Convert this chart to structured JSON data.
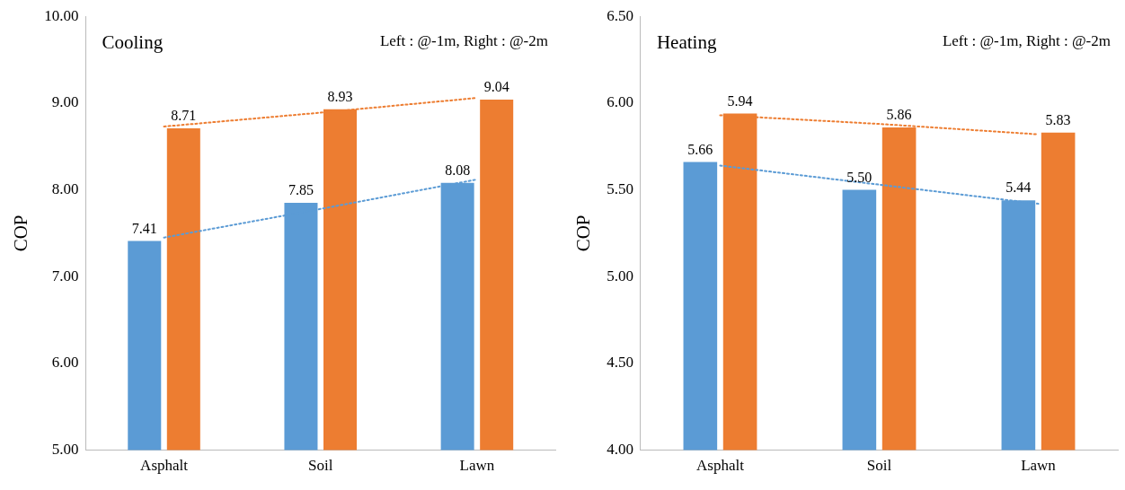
{
  "chart_data": [
    {
      "type": "bar",
      "title": "Cooling",
      "ylabel": "COP",
      "annotations": [
        "Left : @-1m, Right : @-2m"
      ],
      "categories": [
        "Asphalt",
        "Soil",
        "Lawn"
      ],
      "series": [
        {
          "color": "#5b9bd5",
          "values": [
            7.41,
            7.85,
            8.08
          ],
          "value_labels": [
            "7.41",
            "7.85",
            "8.08"
          ]
        },
        {
          "color": "#ed7d31",
          "values": [
            8.71,
            8.93,
            9.04
          ],
          "value_labels": [
            "8.71",
            "8.93",
            "9.04"
          ]
        },
        {
          "type": "line",
          "color": "#5b9bd5",
          "line_style": "dotted",
          "marker": "none",
          "x": [
            "Asphalt",
            "Soil",
            "Lawn"
          ],
          "values": [
            7.45,
            7.78,
            8.12
          ]
        },
        {
          "type": "line",
          "color": "#ed7d31",
          "line_style": "dotted",
          "marker": "none",
          "x": [
            "Asphalt",
            "Soil",
            "Lawn"
          ],
          "values": [
            8.73,
            8.89,
            9.06
          ]
        }
      ],
      "ylim": [
        5,
        10
      ],
      "yticks": [
        {
          "value": 5,
          "label": "5.00"
        },
        {
          "value": 6,
          "label": "6.00"
        },
        {
          "value": 7,
          "label": "7.00"
        },
        {
          "value": 8,
          "label": "8.00"
        },
        {
          "value": 9,
          "label": "9.00"
        },
        {
          "value": 10,
          "label": "10.00"
        }
      ],
      "grid": false,
      "legend": false
    },
    {
      "type": "bar",
      "title": "Heating",
      "ylabel": "COP",
      "annotations": [
        "Left : @-1m, Right : @-2m"
      ],
      "categories": [
        "Asphalt",
        "Soil",
        "Lawn"
      ],
      "series": [
        {
          "color": "#5b9bd5",
          "values": [
            5.66,
            5.5,
            5.44
          ],
          "value_labels": [
            "5.66",
            "5.50",
            "5.44"
          ]
        },
        {
          "color": "#ed7d31",
          "values": [
            5.94,
            5.86,
            5.83
          ],
          "value_labels": [
            "5.94",
            "5.86",
            "5.83"
          ]
        },
        {
          "type": "line",
          "color": "#5b9bd5",
          "line_style": "dotted",
          "marker": "none",
          "x": [
            "Asphalt",
            "Soil",
            "Lawn"
          ],
          "values": [
            5.64,
            5.53,
            5.42
          ]
        },
        {
          "type": "line",
          "color": "#ed7d31",
          "line_style": "dotted",
          "marker": "none",
          "x": [
            "Asphalt",
            "Soil",
            "Lawn"
          ],
          "values": [
            5.93,
            5.88,
            5.82
          ]
        }
      ],
      "ylim": [
        4,
        6.5
      ],
      "yticks": [
        {
          "value": 4,
          "label": "4.00"
        },
        {
          "value": 4.5,
          "label": "4.50"
        },
        {
          "value": 5,
          "label": "5.00"
        },
        {
          "value": 5.5,
          "label": "5.50"
        },
        {
          "value": 6,
          "label": "6.00"
        },
        {
          "value": 6.5,
          "label": "6.50"
        }
      ],
      "grid": false,
      "legend": false
    }
  ]
}
